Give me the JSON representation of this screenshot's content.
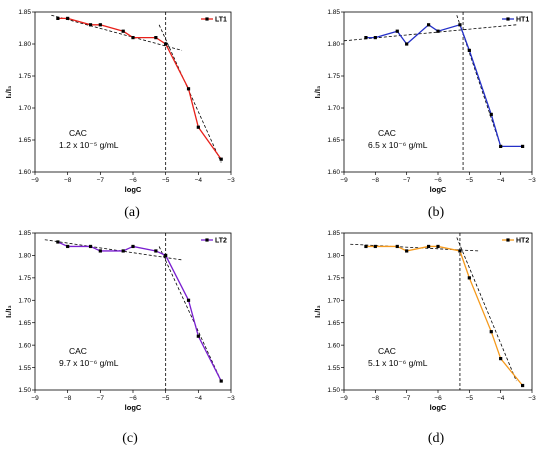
{
  "chart_data": [
    {
      "type": "line",
      "panel_label": "(a)",
      "legend": "LT1",
      "color": "#e8201a",
      "xlabel": "logC",
      "ylabel": "I₁/I₃",
      "xlim": [
        -9,
        -3
      ],
      "ylim": [
        1.6,
        1.85
      ],
      "xticks": [
        -9,
        -8,
        -7,
        -6,
        -5,
        -4,
        -3
      ],
      "yticks": [
        1.6,
        1.65,
        1.7,
        1.75,
        1.8,
        1.85
      ],
      "x": [
        -8.3,
        -8.0,
        -7.3,
        -7.0,
        -6.3,
        -6.0,
        -5.3,
        -5.0,
        -4.3,
        -4.0,
        -3.3
      ],
      "y": [
        1.84,
        1.84,
        1.83,
        1.83,
        1.82,
        1.81,
        1.81,
        1.8,
        1.73,
        1.67,
        1.62
      ],
      "cac_label": "CAC",
      "cac_value": "1.2 x 10⁻⁵ g/mL",
      "vline_x": -5.0,
      "fit_low": [
        [
          -8.5,
          1.845
        ],
        [
          -4.5,
          1.79
        ]
      ],
      "fit_high": [
        [
          -5.2,
          1.83
        ],
        [
          -3.3,
          1.615
        ]
      ]
    },
    {
      "type": "line",
      "panel_label": "(b)",
      "legend": "HT1",
      "color": "#2430c8",
      "xlabel": "logC",
      "ylabel": "I₁/I₃",
      "xlim": [
        -9,
        -3
      ],
      "ylim": [
        1.6,
        1.85
      ],
      "xticks": [
        -9,
        -8,
        -7,
        -6,
        -5,
        -4,
        -3
      ],
      "yticks": [
        1.6,
        1.65,
        1.7,
        1.75,
        1.8,
        1.85
      ],
      "x": [
        -8.3,
        -8.0,
        -7.3,
        -7.0,
        -6.3,
        -6.0,
        -5.3,
        -5.0,
        -4.3,
        -4.0,
        -3.3
      ],
      "y": [
        1.81,
        1.81,
        1.82,
        1.8,
        1.83,
        1.82,
        1.83,
        1.79,
        1.69,
        1.64,
        1.64
      ],
      "cac_label": "CAC",
      "cac_value": "6.5 x 10⁻⁶ g/mL",
      "vline_x": -5.2,
      "fit_low": [
        [
          -9.0,
          1.805
        ],
        [
          -3.5,
          1.83
        ]
      ],
      "fit_high": [
        [
          -5.4,
          1.845
        ],
        [
          -4.0,
          1.64
        ]
      ]
    },
    {
      "type": "line",
      "panel_label": "(c)",
      "legend": "LT2",
      "color": "#7a1fd0",
      "xlabel": "logC",
      "ylabel": "I₁/I₃",
      "xlim": [
        -9,
        -3
      ],
      "ylim": [
        1.5,
        1.85
      ],
      "xticks": [
        -9,
        -8,
        -7,
        -6,
        -5,
        -4,
        -3
      ],
      "yticks": [
        1.5,
        1.55,
        1.6,
        1.65,
        1.7,
        1.75,
        1.8,
        1.85
      ],
      "x": [
        -8.3,
        -8.0,
        -7.3,
        -7.0,
        -6.3,
        -6.0,
        -5.3,
        -5.0,
        -4.3,
        -4.0,
        -3.3
      ],
      "y": [
        1.83,
        1.82,
        1.82,
        1.81,
        1.81,
        1.82,
        1.81,
        1.8,
        1.7,
        1.62,
        1.52
      ],
      "cac_label": "CAC",
      "cac_value": "9.7  x 10⁻⁶ g/mL",
      "vline_x": -5.0,
      "fit_low": [
        [
          -8.7,
          1.835
        ],
        [
          -4.5,
          1.79
        ]
      ],
      "fit_high": [
        [
          -5.2,
          1.82
        ],
        [
          -3.3,
          1.52
        ]
      ]
    },
    {
      "type": "line",
      "panel_label": "(d)",
      "legend": "HT2",
      "color": "#f59a1d",
      "xlabel": "logC",
      "ylabel": "I₁/I₃",
      "xlim": [
        -9,
        -3
      ],
      "ylim": [
        1.5,
        1.85
      ],
      "xticks": [
        -9,
        -8,
        -7,
        -6,
        -5,
        -4,
        -3
      ],
      "yticks": [
        1.5,
        1.55,
        1.6,
        1.65,
        1.7,
        1.75,
        1.8,
        1.85
      ],
      "x": [
        -8.3,
        -8.0,
        -7.3,
        -7.0,
        -6.3,
        -6.0,
        -5.3,
        -5.0,
        -4.3,
        -4.0,
        -3.3
      ],
      "y": [
        1.82,
        1.82,
        1.82,
        1.81,
        1.82,
        1.82,
        1.81,
        1.75,
        1.63,
        1.57,
        1.51
      ],
      "cac_label": "CAC",
      "cac_value": "5.1 x 10⁻⁶ g/mL",
      "vline_x": -5.3,
      "fit_low": [
        [
          -8.8,
          1.825
        ],
        [
          -4.7,
          1.81
        ]
      ],
      "fit_high": [
        [
          -5.4,
          1.84
        ],
        [
          -3.5,
          1.52
        ]
      ]
    }
  ]
}
